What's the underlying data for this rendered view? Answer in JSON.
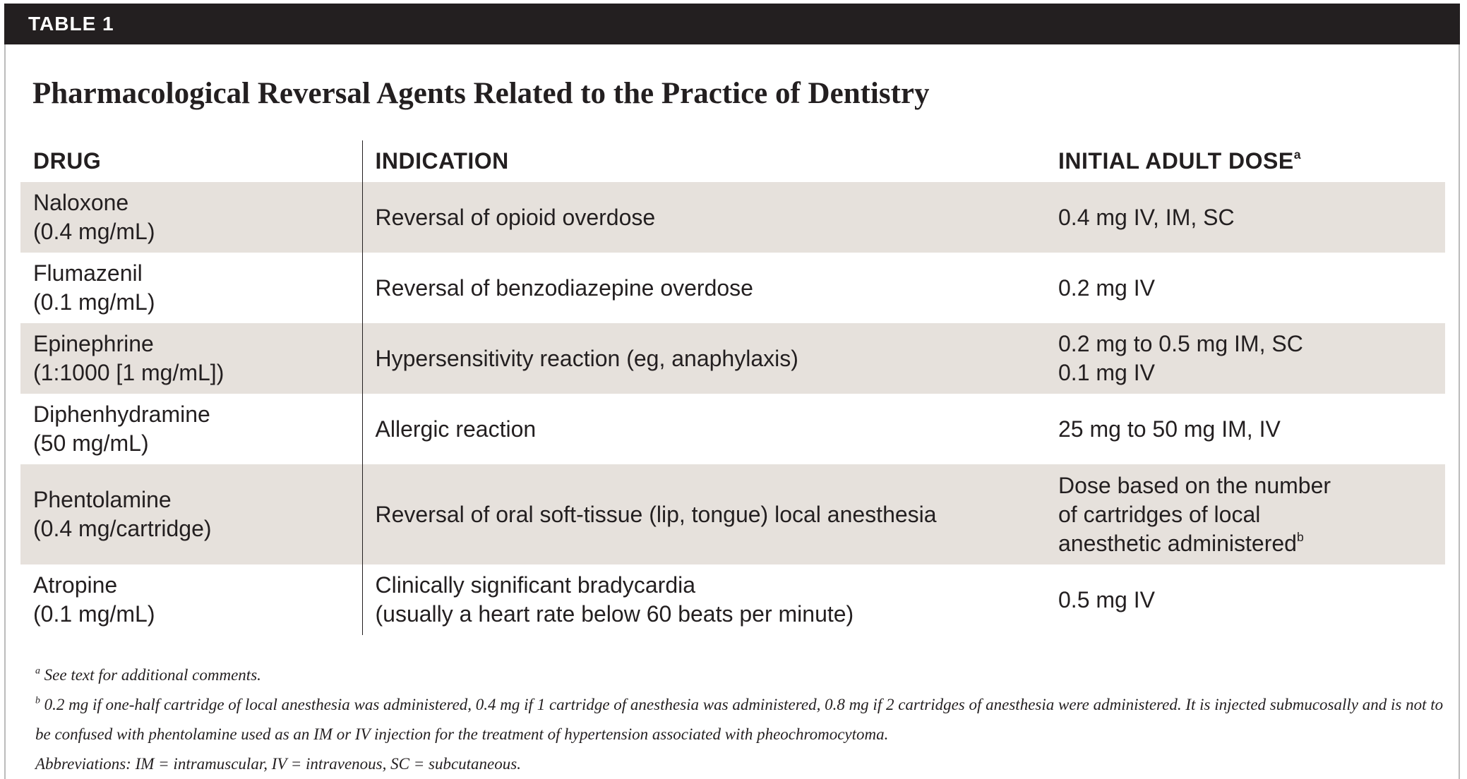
{
  "label": "TABLE 1",
  "title": "Pharmacological Reversal Agents Related to the Practice of Dentistry",
  "table": {
    "columns": [
      {
        "text": "DRUG"
      },
      {
        "text": "INDICATION"
      },
      {
        "text": "INITIAL ADULT DOSE",
        "sup": "a"
      }
    ],
    "rows": [
      [
        [
          "Naloxone",
          "(0.4 mg/mL)"
        ],
        [
          "Reversal of opioid overdose"
        ],
        [
          "0.4 mg IV, IM, SC"
        ]
      ],
      [
        [
          "Flumazenil",
          "(0.1 mg/mL)"
        ],
        [
          "Reversal of benzodiazepine overdose"
        ],
        [
          "0.2 mg IV"
        ]
      ],
      [
        [
          "Epinephrine",
          "(1:1000 [1 mg/mL])"
        ],
        [
          "Hypersensitivity reaction (eg, anaphylaxis)"
        ],
        [
          "0.2 mg to 0.5 mg IM, SC",
          "0.1 mg IV"
        ]
      ],
      [
        [
          "Diphenhydramine",
          "(50 mg/mL)"
        ],
        [
          "Allergic reaction"
        ],
        [
          "25 mg to 50 mg IM, IV"
        ]
      ],
      [
        [
          "Phentolamine",
          "(0.4 mg/cartridge)"
        ],
        [
          "Reversal of oral soft-tissue (lip, tongue) local anesthesia"
        ],
        [
          "Dose based on the number",
          "of cartridges of local",
          {
            "text": "anesthetic administered",
            "sup": "b"
          }
        ]
      ],
      [
        [
          "Atropine",
          "(0.1 mg/mL)"
        ],
        [
          "Clinically significant bradycardia",
          "(usually a heart rate below 60 beats per minute)"
        ],
        [
          "0.5 mg IV"
        ]
      ]
    ]
  },
  "footnotes": [
    {
      "marker": "a",
      "text": "See text for additional comments."
    },
    {
      "marker": "b",
      "text": "0.2 mg if one-half cartridge of local anesthesia was administered, 0.4 mg if 1 cartridge of anesthesia was administered, 0.8 mg if 2 cartridges of anesthesia were administered. It is injected submucosally and is not to be confused with phentolamine used as an IM or IV injection for the treatment of hypertension associated with pheochromocytoma."
    },
    {
      "text": "Abbreviations: IM = intramuscular, IV = intravenous, SC = subcutaneous."
    }
  ]
}
